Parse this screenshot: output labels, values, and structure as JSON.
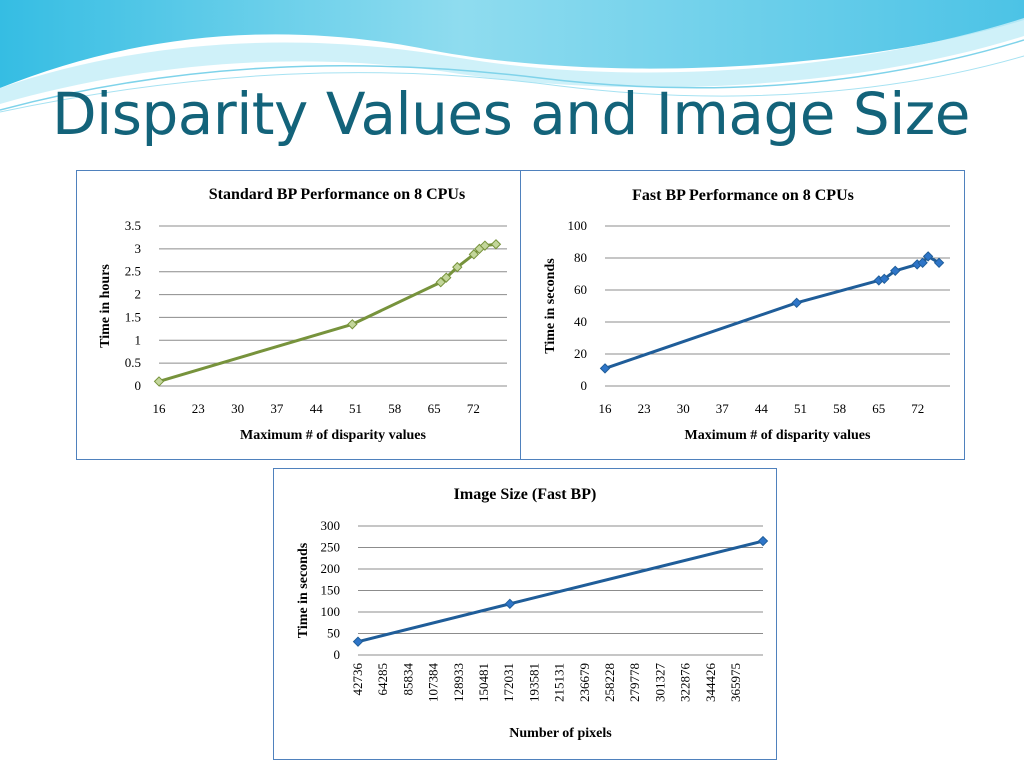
{
  "slide": {
    "title": "Disparity Values and Image Size"
  },
  "colors": {
    "title": "#13637a",
    "panel_border": "#4f81bd",
    "green_line": "#77933c",
    "green_marker": "#c3d69b",
    "blue_line": "#1f5d99",
    "blue_marker": "#2e75c8"
  },
  "chart_data": [
    {
      "id": "standard",
      "type": "line",
      "title": "Standard BP Performance on 8 CPUs",
      "xlabel": "Maximum # of  disparity values",
      "ylabel": "Time in hours",
      "ylim": [
        0,
        3.5
      ],
      "grid": true,
      "x_tick_labels": [
        "16",
        "23",
        "30",
        "37",
        "44",
        "51",
        "58",
        "65",
        "72"
      ],
      "y_tick_labels": [
        "0",
        "0.5",
        "1",
        "1.5",
        "2",
        "2.5",
        "3",
        "3.5"
      ],
      "series": [
        {
          "marker": "diamond",
          "x": [
            16,
            51,
            67,
            68,
            70,
            73,
            74,
            75,
            77
          ],
          "y": [
            0.1,
            1.35,
            2.27,
            2.37,
            2.6,
            2.88,
            3.0,
            3.07,
            3.1
          ]
        }
      ]
    },
    {
      "id": "fast",
      "type": "line",
      "title": "Fast BP Performance on 8 CPUs",
      "xlabel": "Maximum # of  disparity values",
      "ylabel": "Time in seconds",
      "ylim": [
        0,
        100
      ],
      "grid": true,
      "x_tick_labels": [
        "16",
        "23",
        "30",
        "37",
        "44",
        "51",
        "58",
        "65",
        "72"
      ],
      "y_tick_labels": [
        "0",
        "20",
        "40",
        "60",
        "80",
        "100"
      ],
      "series": [
        {
          "marker": "diamond",
          "x": [
            16,
            51,
            66,
            67,
            69,
            73,
            74,
            75,
            77
          ],
          "y": [
            11,
            52,
            66,
            67,
            72,
            76,
            77,
            81,
            77
          ]
        }
      ]
    },
    {
      "id": "image",
      "type": "line",
      "title": "Image Size (Fast BP)",
      "xlabel": "Number of pixels",
      "ylabel": "Time in seconds",
      "ylim": [
        0,
        300
      ],
      "grid": true,
      "x_tick_labels": [
        "42736",
        "64285",
        "85834",
        "107384",
        "128933",
        "150481",
        "172031",
        "193581",
        "215131",
        "236679",
        "258228",
        "279778",
        "301327",
        "322876",
        "344426",
        "365975"
      ],
      "y_tick_labels": [
        "0",
        "50",
        "100",
        "150",
        "200",
        "250",
        "300"
      ],
      "series": [
        {
          "marker": "diamond",
          "x": [
            42736,
            172031,
            387524
          ],
          "y": [
            31,
            119,
            265
          ]
        }
      ]
    }
  ]
}
